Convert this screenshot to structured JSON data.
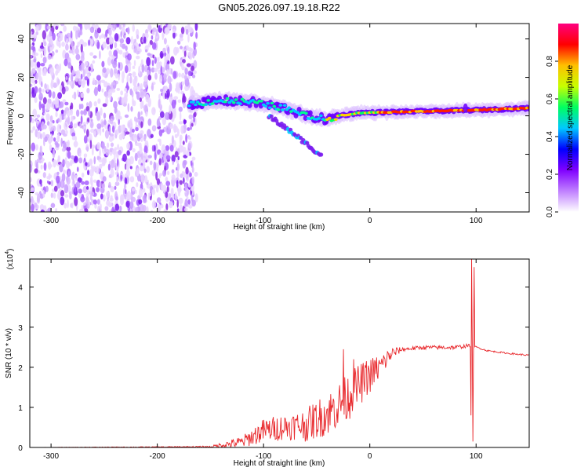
{
  "title": "GN05.2026.097.19.18.R22",
  "chart_data": [
    {
      "type": "heatmap",
      "name": "spectrogram",
      "xlabel": "Height of straight line (km)",
      "ylabel": "Frequency (Hz)",
      "xlim": [
        -320,
        150
      ],
      "ylim": [
        -50,
        48
      ],
      "xticks": [
        -300,
        -200,
        -100,
        0,
        100
      ],
      "xtick_labels": [
        "-300",
        "-200",
        "-100",
        "0",
        "100"
      ],
      "yticks": [
        -40,
        -20,
        0,
        20,
        40
      ],
      "ytick_labels": [
        "-40",
        "-20",
        "0",
        "20",
        "40"
      ],
      "noise_region": {
        "x": [
          -320,
          -163
        ],
        "freq": [
          -50,
          48
        ],
        "level": "low"
      },
      "ridge": [
        {
          "x": -170,
          "freq": 6
        },
        {
          "x": -140,
          "freq": 8
        },
        {
          "x": -110,
          "freq": 7
        },
        {
          "x": -80,
          "freq": 4
        },
        {
          "x": -60,
          "freq": 0
        },
        {
          "x": -40,
          "freq": -2
        },
        {
          "x": -30,
          "freq": 0
        },
        {
          "x": -10,
          "freq": 1.5
        },
        {
          "x": 20,
          "freq": 2
        },
        {
          "x": 60,
          "freq": 2.5
        },
        {
          "x": 100,
          "freq": 3
        },
        {
          "x": 150,
          "freq": 4
        }
      ],
      "branch": [
        {
          "x": -95,
          "freq": 0
        },
        {
          "x": -70,
          "freq": -10
        },
        {
          "x": -45,
          "freq": -21
        }
      ],
      "colorbar": {
        "label": "Normalized spectral amplitude",
        "range": [
          0.0,
          1.0
        ],
        "ticks": [
          0.0,
          0.2,
          0.4,
          0.6,
          0.8
        ],
        "tick_labels": [
          "0.0",
          "0.2",
          "0.4",
          "0.6",
          "0.8"
        ],
        "colors": [
          "#ffffff",
          "#c080ff",
          "#8000ff",
          "#0000ff",
          "#00c8ff",
          "#00ff60",
          "#c8ff00",
          "#ffc000",
          "#ff0000",
          "#ff0080"
        ]
      }
    },
    {
      "type": "line",
      "name": "snr",
      "xlabel": "Height of straight line (km)",
      "ylabel": "SNR (10 * v/v)",
      "yscale_label": "(x10",
      "yscale_exponent": "4",
      "yscale_suffix": ")",
      "xlim": [
        -320,
        150
      ],
      "ylim": [
        0,
        4.7
      ],
      "xticks": [
        -300,
        -200,
        -100,
        0,
        100
      ],
      "xtick_labels": [
        "-300",
        "-200",
        "-100",
        "0",
        "100"
      ],
      "yticks": [
        0,
        1,
        2,
        3,
        4
      ],
      "ytick_labels": [
        "0",
        "1",
        "2",
        "3",
        "4"
      ],
      "color": "#e8262a",
      "envelope": [
        {
          "x": -320,
          "y": 0.0
        },
        {
          "x": -200,
          "y": 0.01
        },
        {
          "x": -150,
          "y": 0.02
        },
        {
          "x": -120,
          "y": 0.15
        },
        {
          "x": -100,
          "y": 0.45
        },
        {
          "x": -80,
          "y": 0.55
        },
        {
          "x": -60,
          "y": 0.6
        },
        {
          "x": -40,
          "y": 0.9
        },
        {
          "x": -25,
          "y": 1.2
        },
        {
          "x": -10,
          "y": 1.6
        },
        {
          "x": 0,
          "y": 1.85
        },
        {
          "x": 10,
          "y": 2.05
        },
        {
          "x": 20,
          "y": 2.35
        },
        {
          "x": 30,
          "y": 2.45
        },
        {
          "x": 50,
          "y": 2.5
        },
        {
          "x": 80,
          "y": 2.5
        },
        {
          "x": 95,
          "y": 2.55
        },
        {
          "x": 110,
          "y": 2.42
        },
        {
          "x": 130,
          "y": 2.35
        },
        {
          "x": 150,
          "y": 2.3
        }
      ],
      "noise_amplitude": [
        {
          "x": -320,
          "a": 0.0
        },
        {
          "x": -150,
          "a": 0.02
        },
        {
          "x": -120,
          "a": 0.15
        },
        {
          "x": -100,
          "a": 0.3
        },
        {
          "x": -70,
          "a": 0.35
        },
        {
          "x": -40,
          "a": 0.55
        },
        {
          "x": -20,
          "a": 0.6
        },
        {
          "x": 0,
          "a": 0.45
        },
        {
          "x": 15,
          "a": 0.25
        },
        {
          "x": 30,
          "a": 0.05
        },
        {
          "x": 90,
          "a": 0.05
        },
        {
          "x": 100,
          "a": 0.02
        },
        {
          "x": 150,
          "a": 0.02
        }
      ],
      "spikes": [
        {
          "x": -25,
          "y": 2.45
        },
        {
          "x": -15,
          "y": 2.2
        },
        {
          "x": 96,
          "y": 4.7
        },
        {
          "x": 97,
          "y": 0.15
        },
        {
          "x": 98,
          "y": 4.5
        },
        {
          "x": 95,
          "y": 0.8
        }
      ]
    }
  ]
}
